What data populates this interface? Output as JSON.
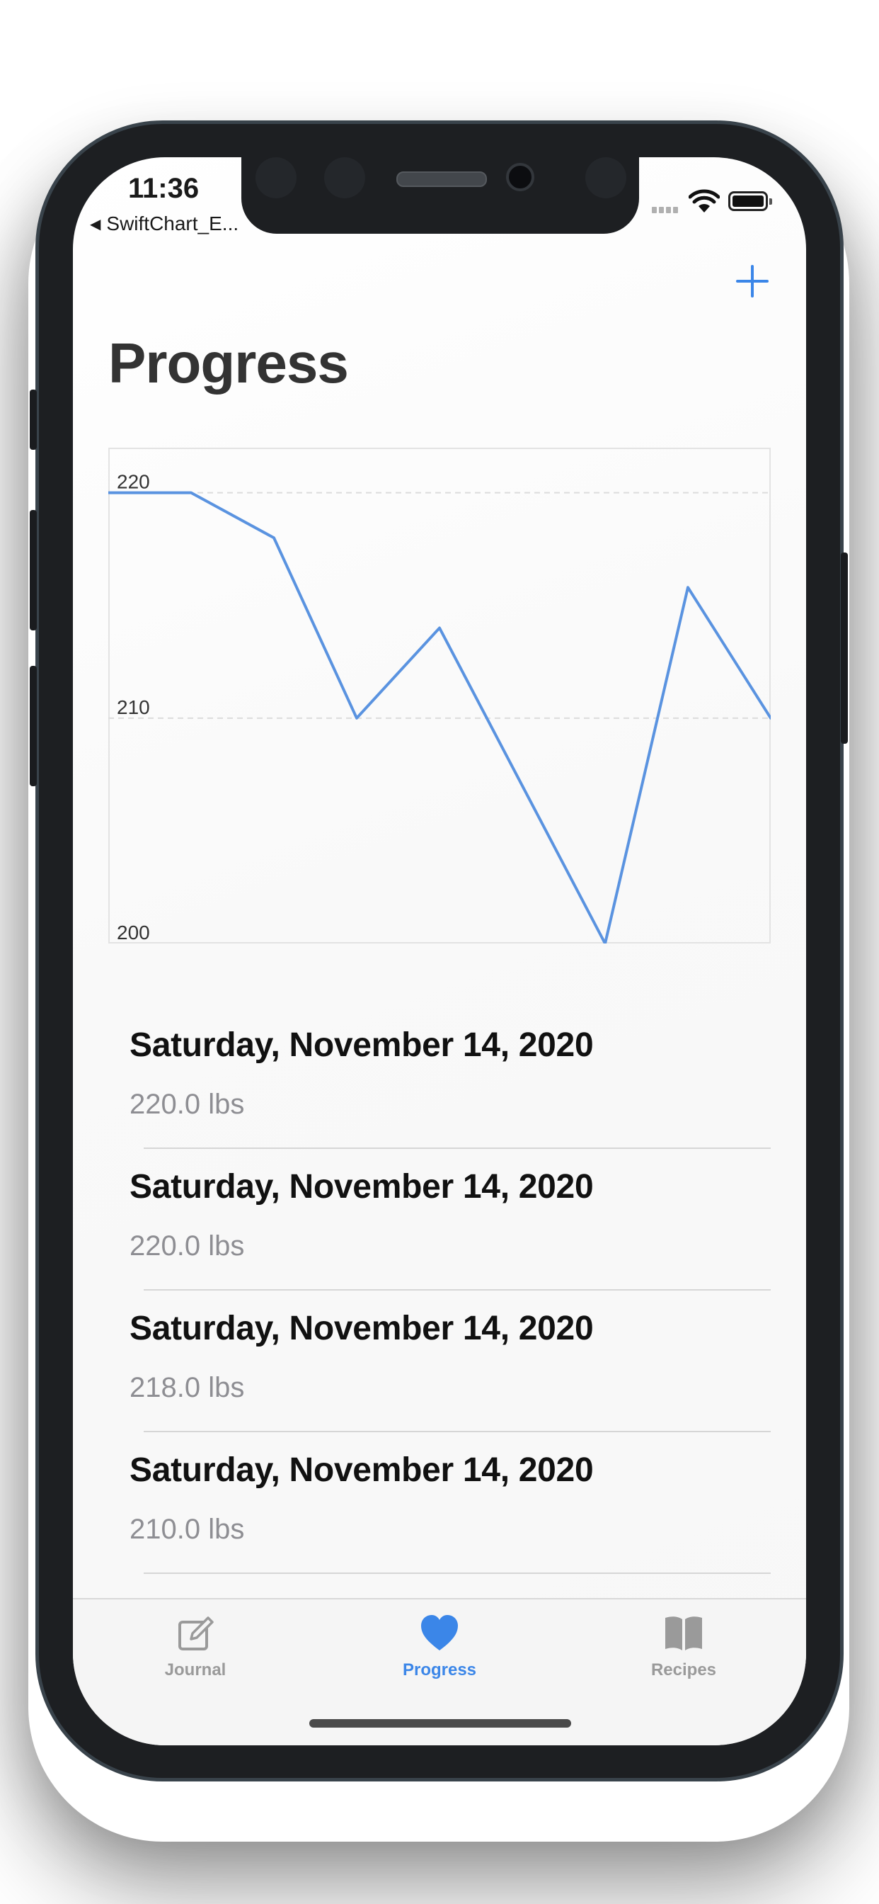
{
  "status_bar": {
    "time": "11:36",
    "back_app": "SwiftChart_E..."
  },
  "nav": {
    "title": "Progress",
    "add_icon": "plus-icon"
  },
  "chart_data": {
    "type": "line",
    "x": [
      0,
      1,
      2,
      3,
      4,
      5,
      6,
      7,
      8
    ],
    "values": [
      220,
      220,
      218,
      210,
      214,
      207,
      200,
      215.8,
      210
    ],
    "ylim": [
      200,
      222
    ],
    "yticks": [
      "220",
      "210",
      "200"
    ],
    "ytick_values": [
      220,
      210,
      200
    ],
    "line_color": "#5a93e0",
    "grid": "horizontal dashed"
  },
  "entries": [
    {
      "date": "Saturday, November 14, 2020",
      "weight": "220.0 lbs"
    },
    {
      "date": "Saturday, November 14, 2020",
      "weight": "220.0 lbs"
    },
    {
      "date": "Saturday, November 14, 2020",
      "weight": "218.0 lbs"
    },
    {
      "date": "Saturday, November 14, 2020",
      "weight": "210.0 lbs"
    }
  ],
  "tab_bar": {
    "tabs": [
      {
        "label": "Journal",
        "icon": "compose-icon",
        "active": false
      },
      {
        "label": "Progress",
        "icon": "heart-icon",
        "active": true
      },
      {
        "label": "Recipes",
        "icon": "book-icon",
        "active": false
      }
    ]
  },
  "colors": {
    "accent": "#3b86e8",
    "chart_line": "#5a93e0",
    "secondary_text": "#8e8e93"
  }
}
